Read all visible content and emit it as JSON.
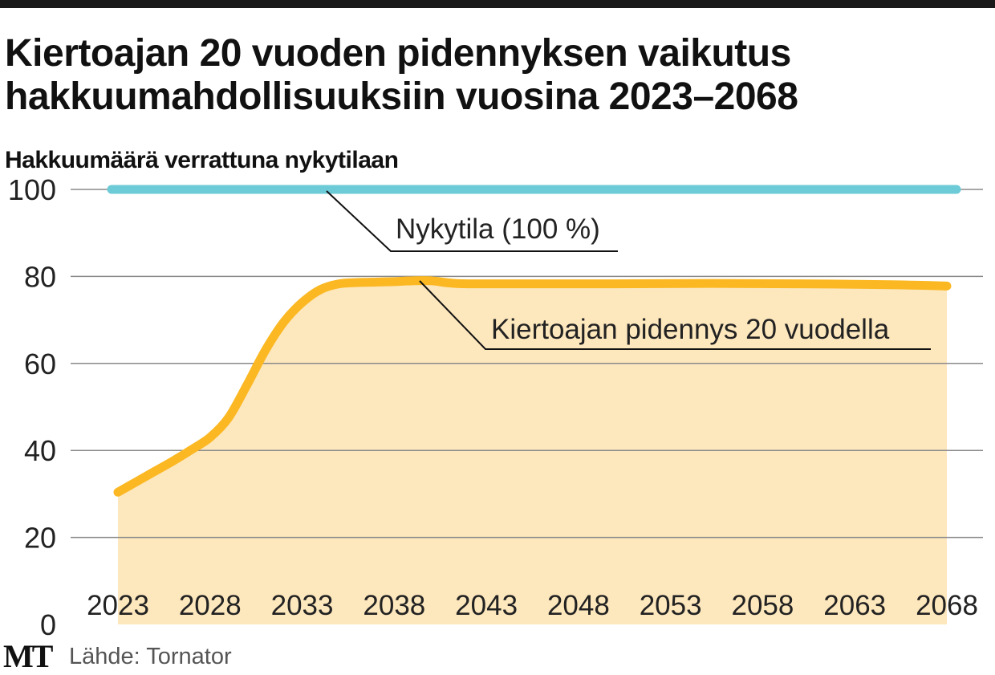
{
  "chart_data": {
    "type": "area",
    "title": "Kiertoajan 20 vuoden pidennyksen vaikutus hakkuumahdollisuuksiin vuosina 2023–2068",
    "title_lines": [
      "Kiertoajan 20 vuoden pidennyksen vaikutus",
      "hakkuumahdollisuuksiin vuosina 2023–2068"
    ],
    "ylabel": "Hakkuumäärä verrattuna nykytilaan",
    "xlabel": "",
    "ylim": [
      0,
      100
    ],
    "xlim": [
      2023,
      2068
    ],
    "yticks": [
      "0",
      "20",
      "40",
      "60",
      "80",
      "100"
    ],
    "xticks": [
      "2023",
      "2028",
      "2033",
      "2038",
      "2043",
      "2048",
      "2053",
      "2058",
      "2063",
      "2068"
    ],
    "grid": true,
    "series": [
      {
        "name": "Nykytila (100 %)",
        "color": "#6ccbd6",
        "x": [
          2023,
          2068
        ],
        "values": [
          100,
          100
        ]
      },
      {
        "name": "Kiertoajan pidennys 20 vuodella",
        "color": "#fbb823",
        "fill": "#fde7bd",
        "x": [
          2023,
          2024,
          2025,
          2026,
          2027,
          2028,
          2029,
          2030,
          2031,
          2032,
          2033,
          2034,
          2035,
          2036,
          2037,
          2038,
          2039,
          2040,
          2041,
          2042,
          2045,
          2050,
          2055,
          2060,
          2065,
          2068
        ],
        "values": [
          30.4,
          32.8,
          35.2,
          37.6,
          40.2,
          43,
          47.5,
          55,
          63,
          69.5,
          74,
          77,
          78.3,
          78.6,
          78.7,
          78.8,
          79,
          79,
          78.5,
          78.3,
          78.3,
          78.3,
          78.4,
          78.3,
          78.1,
          77.8
        ]
      }
    ],
    "annotations": [
      "Nykytila (100 %)",
      "Kiertoajan pidennys 20 vuodella"
    ]
  },
  "footer": {
    "logo": "MT",
    "source": "Lähde: Tornator"
  }
}
